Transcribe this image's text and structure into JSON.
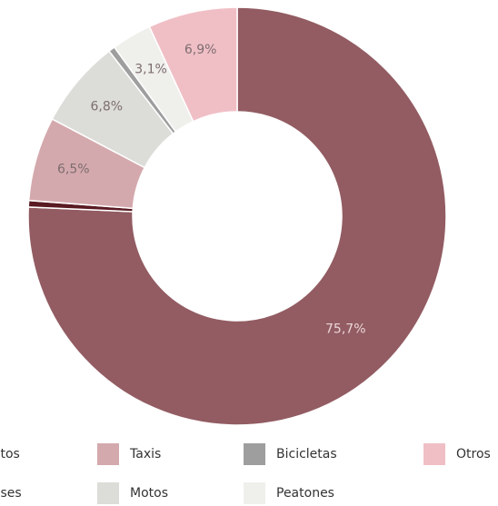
{
  "chart_data": {
    "type": "donut",
    "categories": [
      "Autos",
      "Buses",
      "Taxis",
      "Motos",
      "Bicicletas",
      "Peatones",
      "Otros"
    ],
    "values": [
      75.7,
      0.5,
      6.5,
      6.8,
      0.5,
      3.1,
      6.9
    ],
    "value_labels": [
      "75,7%",
      null,
      "6,5%",
      "6,8%",
      null,
      "3,1%",
      "6,9%"
    ],
    "colors": [
      "#925c62",
      "#5a1a22",
      "#d4a9ad",
      "#dcddd8",
      "#9e9e9e",
      "#efefec",
      "#f0bfc6"
    ],
    "legend": "bottom"
  }
}
